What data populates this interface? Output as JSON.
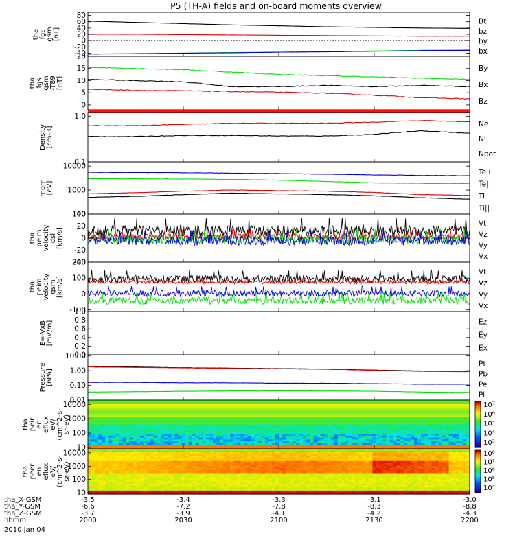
{
  "title": "P5 (TH-A) fields and on-board moments overview",
  "colors": {
    "black": "#000000",
    "red": "#e00000",
    "green": "#00e000",
    "blue": "#0000dd"
  },
  "chart_data": [
    {
      "type": "line",
      "ylabel": [
        "tha",
        "fgs",
        "gsm",
        "[nT]"
      ],
      "ylim": [
        -50,
        90
      ],
      "yticks": [
        "80",
        "60",
        "40",
        "20",
        "0",
        "-20",
        "-40"
      ],
      "ytickvals": [
        80,
        60,
        40,
        20,
        0,
        -20,
        -40
      ],
      "series": [
        {
          "name": "Bt",
          "color": "#000000",
          "values": [
            62,
            58,
            54,
            50,
            47,
            44,
            42,
            40,
            39
          ]
        },
        {
          "name": "bz",
          "color": "#e00000",
          "values": [
            20,
            20,
            19,
            18,
            17,
            16,
            15,
            14,
            14
          ]
        },
        {
          "name": "by",
          "color": "#00e000",
          "values": [
            -43,
            -41,
            -40,
            -38,
            -37,
            -35,
            -33,
            -31,
            -30
          ]
        },
        {
          "name": "bx",
          "color": "#0000dd",
          "values": [
            -43,
            -42,
            -40,
            -39,
            -37,
            -36,
            -34,
            -32,
            -31
          ]
        }
      ]
    },
    {
      "type": "line",
      "ylabel": [
        "tha",
        "fgs",
        "gsm",
        "-T89",
        "[nT]"
      ],
      "ylim": [
        -2,
        20
      ],
      "yticks": [
        "20",
        "15",
        "10",
        "5",
        "0"
      ],
      "ytickvals": [
        20,
        15,
        10,
        5,
        0
      ],
      "series": [
        {
          "name": "By",
          "color": "#00e000",
          "values": [
            15.5,
            15,
            14.5,
            13.5,
            12.5,
            12,
            11.5,
            11,
            10.5
          ]
        },
        {
          "name": "Bx",
          "color": "#000000",
          "values": [
            10.5,
            10,
            9.5,
            7.5,
            7.5,
            8,
            7.5,
            8,
            7.5
          ]
        },
        {
          "name": "Bz",
          "color": "#e00000",
          "values": [
            6.5,
            6,
            5.8,
            5.5,
            5.2,
            4.8,
            4,
            3,
            2.5
          ]
        }
      ]
    },
    {
      "type": "line",
      "ylabel": [
        "Density",
        "[cm-3]"
      ],
      "log": true,
      "ylim": [
        0.1,
        1.2
      ],
      "yticks": [
        "1.0",
        "0.1"
      ],
      "ytickvals": [
        1.0,
        0.1
      ],
      "series": [
        {
          "name": "Ne",
          "color": "#e00000",
          "values": [
            0.62,
            0.62,
            0.66,
            0.7,
            0.7,
            0.7,
            0.74,
            0.8,
            0.75
          ]
        },
        {
          "name": "Ni",
          "color": "#000000",
          "values": [
            0.36,
            0.36,
            0.38,
            0.38,
            0.37,
            0.37,
            0.4,
            0.48,
            0.42
          ]
        },
        {
          "name": "Npot",
          "color": "#0000dd",
          "values": []
        }
      ]
    },
    {
      "type": "line",
      "ylabel": [
        "mom",
        "[eV]"
      ],
      "log": true,
      "ylim": [
        100,
        15000
      ],
      "yticks": [
        "10000",
        "1000",
        "100"
      ],
      "ytickvals": [
        10000,
        1000,
        100
      ],
      "series": [
        {
          "name": "Te⊥",
          "color": "#e00000",
          "values": [
            700,
            780,
            900,
            1000,
            950,
            900,
            800,
            650,
            600
          ]
        },
        {
          "name": "Te||",
          "color": "#000000",
          "values": [
            500,
            550,
            650,
            750,
            700,
            650,
            580,
            480,
            420
          ]
        },
        {
          "name": "Ti⊥",
          "color": "#0000dd",
          "values": [
            5500,
            5400,
            5300,
            5100,
            4900,
            4600,
            4300,
            4100,
            4000
          ]
        },
        {
          "name": "Ti||",
          "color": "#00e000",
          "values": [
            3000,
            2950,
            2900,
            2800,
            2600,
            2300,
            2000,
            1900,
            1900
          ]
        }
      ]
    },
    {
      "type": "line",
      "ylabel": [
        "tha",
        "peim",
        "velocity",
        "dsl",
        "[km/s]"
      ],
      "ylim": [
        -40,
        40
      ],
      "yticks": [
        "40",
        "20",
        "0",
        "-20",
        "-40"
      ],
      "ytickvals": [
        40,
        20,
        0,
        -20,
        -40
      ],
      "series": [
        {
          "name": "Vt",
          "color": "#000000",
          "values": [
            12,
            12,
            12,
            12,
            12,
            12,
            12,
            12,
            12
          ],
          "noise": 10
        },
        {
          "name": "Vz",
          "color": "#e00000",
          "values": [
            3,
            3,
            3,
            3,
            3,
            3,
            3,
            3,
            3
          ],
          "noise": 5
        },
        {
          "name": "Vy",
          "color": "#00e000",
          "values": [
            -2,
            -2,
            -2,
            -2,
            -2,
            -2,
            -2,
            -2,
            -2
          ],
          "noise": 8
        },
        {
          "name": "Vx",
          "color": "#0000dd",
          "values": [
            -4,
            -4,
            -4,
            -4,
            -4,
            -4,
            -4,
            -4,
            -4
          ],
          "noise": 8
        }
      ]
    },
    {
      "type": "line",
      "ylabel": [
        "tha",
        "peim",
        "velocity",
        "gsm",
        "[km/s]"
      ],
      "ylim": [
        -110,
        200
      ],
      "yticks": [
        "200",
        "100",
        "0",
        "-100"
      ],
      "ytickvals": [
        200,
        100,
        0,
        -100
      ],
      "series": [
        {
          "name": "Vt",
          "color": "#000000",
          "values": [
            95,
            95,
            95,
            95,
            95,
            95,
            95,
            95,
            95
          ],
          "noise": 25
        },
        {
          "name": "Vz",
          "color": "#e00000",
          "values": [
            75,
            75,
            75,
            75,
            75,
            75,
            75,
            75,
            75
          ],
          "noise": 12
        },
        {
          "name": "Vy",
          "color": "#00e000",
          "values": [
            -40,
            -40,
            -40,
            -40,
            -40,
            -40,
            -40,
            -40,
            -40
          ],
          "noise": 25
        },
        {
          "name": "Vx",
          "color": "#0000dd",
          "values": [
            5,
            5,
            5,
            5,
            5,
            5,
            5,
            5,
            5
          ],
          "noise": 20
        }
      ]
    },
    {
      "type": "line",
      "ylabel": [
        "E=-VxB",
        "[mV/m]"
      ],
      "ylim": [
        0,
        1
      ],
      "yticks": [
        "1.0",
        "0.8",
        "0.6",
        "0.4",
        "0.2",
        "0.0"
      ],
      "ytickvals": [
        1,
        0.8,
        0.6,
        0.4,
        0.2,
        0
      ],
      "series": [
        {
          "name": "Ez",
          "color": "#e00000",
          "values": []
        },
        {
          "name": "Ey",
          "color": "#00e000",
          "values": []
        },
        {
          "name": "Ex",
          "color": "#0000dd",
          "values": []
        }
      ]
    },
    {
      "type": "line",
      "ylabel": [
        "Pressure",
        "[nPa]"
      ],
      "log": true,
      "ylim": [
        0.01,
        12
      ],
      "yticks": [
        "10.00",
        "1.00",
        "0.10",
        "0.01"
      ],
      "ytickvals": [
        10,
        1,
        0.1,
        0.01
      ],
      "series": [
        {
          "name": "Pt",
          "color": "#000000",
          "values": [
            1.9,
            1.8,
            1.6,
            1.5,
            1.4,
            1.3,
            1.1,
            0.95,
            0.9
          ]
        },
        {
          "name": "Pb",
          "color": "#e00000",
          "values": [
            1.8,
            1.7,
            1.55,
            1.45,
            1.35,
            1.25,
            1.05,
            0.9,
            0.85
          ]
        },
        {
          "name": "Pe",
          "color": "#00e000",
          "values": [
            0.035,
            0.037,
            0.04,
            0.042,
            0.042,
            0.042,
            0.04,
            0.035,
            0.033
          ]
        },
        {
          "name": "Pi",
          "color": "#0000dd",
          "values": [
            0.16,
            0.16,
            0.15,
            0.15,
            0.14,
            0.14,
            0.13,
            0.12,
            0.12
          ]
        }
      ]
    },
    {
      "type": "heatmap",
      "ylabel": [
        "tha",
        "peir",
        "en",
        "eflux",
        "eV/",
        "(cm^2-s-",
        "sr-eV)"
      ],
      "yticks": [
        "10000",
        "1000",
        "100",
        "10"
      ],
      "colorbar": [
        "10⁷",
        "10⁶",
        "10⁵",
        "10⁴",
        "10³"
      ]
    },
    {
      "type": "heatmap",
      "ylabel": [
        "tha",
        "peer",
        "en",
        "eflux",
        "eV/",
        "(cm^2-s-",
        "sr-eV)"
      ],
      "yticks": [
        "10000",
        "1000",
        "100",
        "10"
      ],
      "colorbar": [
        "10⁸",
        "10⁷",
        "10⁶",
        "10⁵",
        "10⁴"
      ]
    }
  ],
  "x_axis": {
    "rows": [
      {
        "label": "tha_X-GSM",
        "values": [
          "-3.5",
          "-3.4",
          "-3.3",
          "-3.1",
          "-3.0"
        ]
      },
      {
        "label": "tha_Y-GSM",
        "values": [
          "-6.6",
          "-7.2",
          "-7.8",
          "-8.3",
          "-8.8"
        ]
      },
      {
        "label": "tha_Z-GSM",
        "values": [
          "-3.7",
          "-3.9",
          "-4.1",
          "-4.2",
          "-4.3"
        ]
      },
      {
        "label": "hhmm",
        "values": [
          "2000",
          "2030",
          "2100",
          "2130",
          "2200"
        ]
      }
    ],
    "date": "2010 Jan 04"
  }
}
